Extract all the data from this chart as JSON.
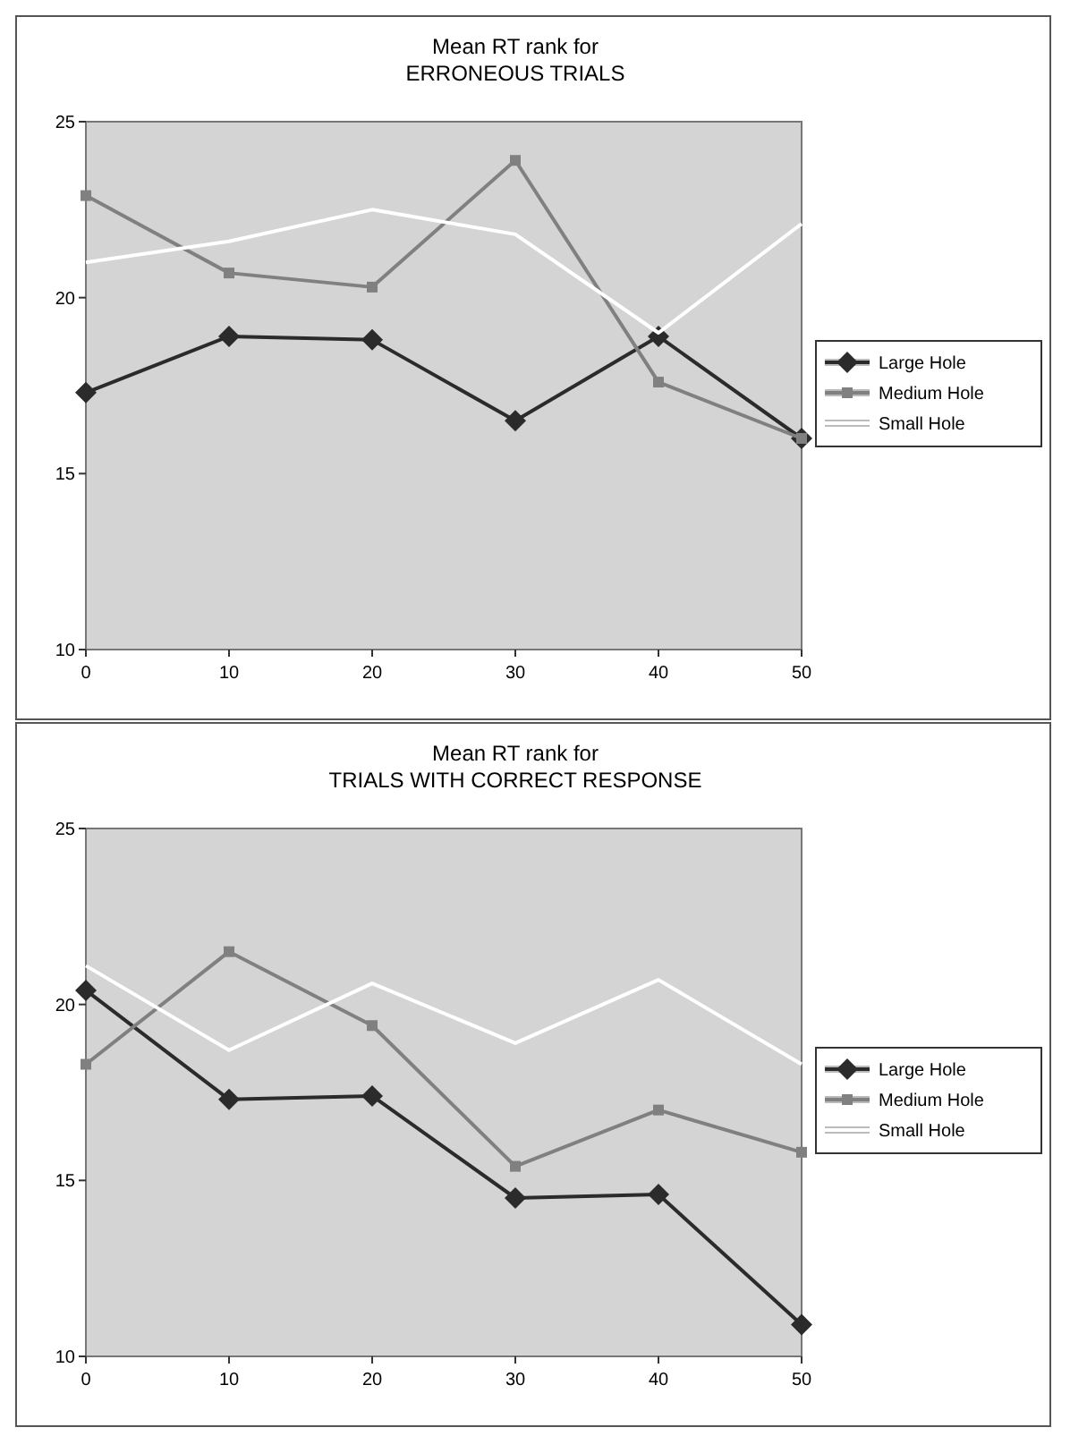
{
  "chart_data": [
    {
      "type": "line",
      "title": "Mean RT rank for\nERRONEOUS TRIALS",
      "x": [
        0,
        10,
        20,
        30,
        40,
        50
      ],
      "xlim": [
        0,
        50
      ],
      "xticks": [
        0,
        10,
        20,
        30,
        40,
        50
      ],
      "ylim": [
        10,
        25
      ],
      "yticks": [
        10,
        15,
        20,
        25
      ],
      "legend": "right",
      "grid": false,
      "series": [
        {
          "name": "Large Hole",
          "color": "#2b2b2b",
          "marker": "diamond",
          "values": [
            17.3,
            18.9,
            18.8,
            16.5,
            18.9,
            16.0
          ]
        },
        {
          "name": "Medium Hole",
          "color": "#808080",
          "marker": "square",
          "values": [
            22.9,
            20.7,
            20.3,
            23.9,
            17.6,
            16.0
          ]
        },
        {
          "name": "Small Hole",
          "color": "#ffffff",
          "marker": "none",
          "values": [
            21.0,
            21.6,
            22.5,
            21.8,
            19.0,
            22.1
          ]
        }
      ]
    },
    {
      "type": "line",
      "title": "Mean RT rank for\nTRIALS WITH CORRECT RESPONSE",
      "x": [
        0,
        10,
        20,
        30,
        40,
        50
      ],
      "xlim": [
        0,
        50
      ],
      "xticks": [
        0,
        10,
        20,
        30,
        40,
        50
      ],
      "ylim": [
        10,
        25
      ],
      "yticks": [
        10,
        15,
        20,
        25
      ],
      "legend": "right",
      "grid": false,
      "series": [
        {
          "name": "Large Hole",
          "color": "#2b2b2b",
          "marker": "diamond",
          "values": [
            20.4,
            17.3,
            17.4,
            14.5,
            14.6,
            10.9
          ]
        },
        {
          "name": "Medium Hole",
          "color": "#808080",
          "marker": "square",
          "values": [
            18.3,
            21.5,
            19.4,
            15.4,
            17.0,
            15.8
          ]
        },
        {
          "name": "Small Hole",
          "color": "#ffffff",
          "marker": "none",
          "values": [
            21.1,
            18.7,
            20.6,
            18.9,
            20.7,
            18.3
          ]
        }
      ]
    }
  ]
}
